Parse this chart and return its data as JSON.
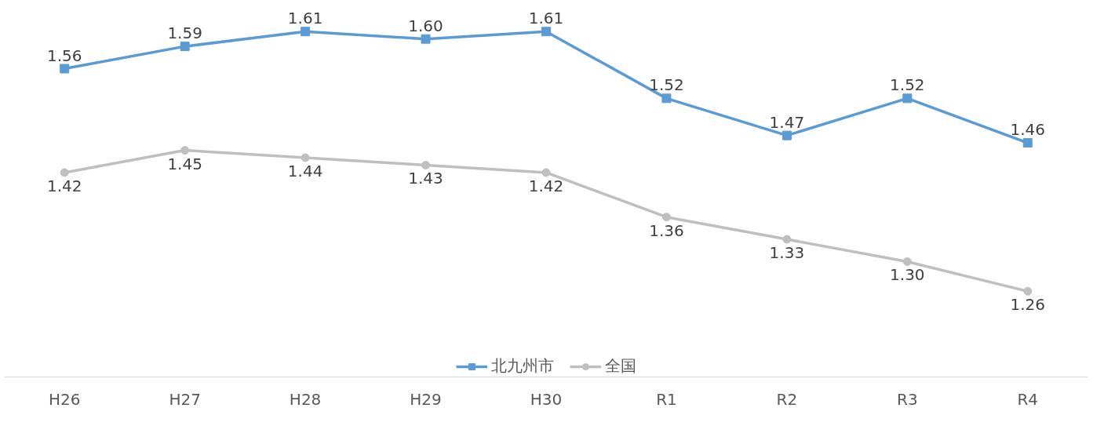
{
  "chart_data": {
    "type": "line",
    "categories": [
      "H26",
      "H27",
      "H28",
      "H29",
      "H30",
      "R1",
      "R2",
      "R3",
      "R4"
    ],
    "series": [
      {
        "name": "北九州市",
        "color": "#5b9bd5",
        "marker": "square",
        "values": [
          1.56,
          1.59,
          1.61,
          1.6,
          1.61,
          1.52,
          1.47,
          1.52,
          1.46
        ],
        "value_labels": [
          "1.56",
          "1.59",
          "1.61",
          "1.60",
          "1.61",
          "1.52",
          "1.47",
          "1.52",
          "1.46"
        ]
      },
      {
        "name": "全国",
        "color": "#bfbfbf",
        "marker": "circle",
        "values": [
          1.42,
          1.45,
          1.44,
          1.43,
          1.42,
          1.36,
          1.33,
          1.3,
          1.26
        ],
        "value_labels": [
          "1.42",
          "1.45",
          "1.44",
          "1.43",
          "1.42",
          "1.36",
          "1.33",
          "1.30",
          "1.26"
        ]
      }
    ],
    "legend": "bottom",
    "grid": false,
    "line_style": "solid"
  }
}
